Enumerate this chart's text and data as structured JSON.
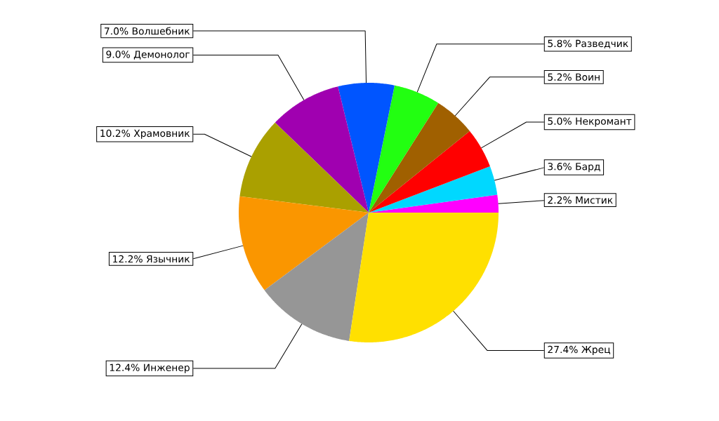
{
  "chart_data": {
    "type": "pie",
    "categories": [
      "Мистик",
      "Бард",
      "Некромант",
      "Воин",
      "Разведчик",
      "Волшебник",
      "Демонолог",
      "Храмовник",
      "Язычник",
      "Инженер",
      "Жрец"
    ],
    "values": [
      2.2,
      3.6,
      5.0,
      5.2,
      5.8,
      7.0,
      9.0,
      10.2,
      12.2,
      12.4,
      27.4
    ],
    "value_labels": [
      "2.2%",
      "3.6%",
      "5.0%",
      "5.2%",
      "5.8%",
      "7.0%",
      "9.0%",
      "10.2%",
      "12.2%",
      "12.4%",
      "27.4%"
    ],
    "colors": [
      "#ff00ff",
      "#00d8ff",
      "#ff0000",
      "#a06000",
      "#22ff11",
      "#0055ff",
      "#a000b0",
      "#aaa000",
      "#fa9600",
      "#969696",
      "#ffe000"
    ]
  }
}
